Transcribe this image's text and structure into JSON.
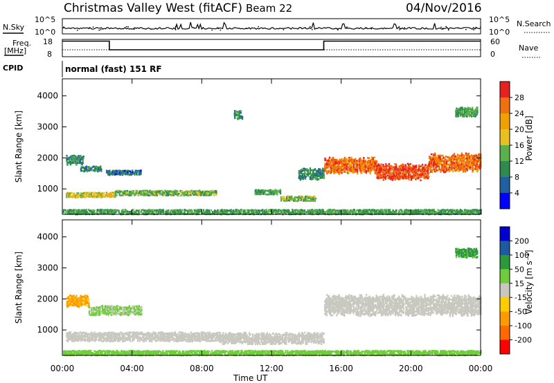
{
  "header": {
    "title": "Christmas Valley West (fitACF)",
    "beam": "Beam 22",
    "date": "04/Nov/2016"
  },
  "noise_panel": {
    "left_label": "N.Sky",
    "right_label": "N.Search",
    "left_ticks": [
      "10^5",
      "10^0"
    ],
    "right_ticks": [
      "10^5",
      "10^0"
    ]
  },
  "freq_panel": {
    "left_label_line1": "Freq.",
    "left_label_line2": "[MHz]",
    "right_label": "Nave",
    "left_ticks": [
      "18",
      "8"
    ],
    "right_ticks": [
      "60",
      "0"
    ]
  },
  "cpid": {
    "label": "CPID",
    "value": "normal (fast) 151 RF"
  },
  "power_panel": {
    "ylabel": "Slant Range [km]",
    "yticks": [
      "4000",
      "3000",
      "2000",
      "1000"
    ],
    "colorbar_label": "Power [dB]",
    "colorbar_ticks": [
      "28",
      "24",
      "20",
      "16",
      "12",
      "8",
      "4"
    ]
  },
  "velocity_panel": {
    "ylabel": "Slant Range [km]",
    "yticks": [
      "4000",
      "3000",
      "2000",
      "1000"
    ],
    "colorbar_label": "Velocity [m s⁻¹]",
    "colorbar_ticks": [
      "200",
      "100",
      "50",
      "15",
      "-15",
      "-50",
      "-100",
      "-200"
    ]
  },
  "xaxis": {
    "label": "Time UT",
    "ticks": [
      "00:00",
      "04:00",
      "08:00",
      "12:00",
      "16:00",
      "20:00",
      "00:00"
    ]
  },
  "colors": {
    "power_scale": [
      "#0000ff",
      "#2060a0",
      "#2f8a50",
      "#5ab04a",
      "#e8c020",
      "#f0a000",
      "#f07010",
      "#e82020"
    ],
    "velocity_scale": [
      "#ff0000",
      "#ff6a00",
      "#ff9a00",
      "#ffcc00",
      "#c8c8c0",
      "#6fcc3a",
      "#2a9a3a",
      "#1e5aa0",
      "#0000d0"
    ]
  },
  "chart_data": [
    {
      "type": "heatmap",
      "title": "Power",
      "xlabel": "Time UT",
      "ylabel": "Slant Range [km]",
      "xlim": [
        0,
        24
      ],
      "ylim": [
        180,
        4550
      ],
      "colorbar": "Power [dB]",
      "clim": [
        0,
        32
      ],
      "regions": [
        {
          "t_start": 0.2,
          "t_end": 1.2,
          "range_center": 1950,
          "range_halfwidth": 120,
          "value": 10
        },
        {
          "t_start": 1.0,
          "t_end": 2.2,
          "range_center": 1650,
          "range_halfwidth": 80,
          "value": 9
        },
        {
          "t_start": 2.5,
          "t_end": 4.5,
          "range_center": 1550,
          "range_halfwidth": 60,
          "value": 7
        },
        {
          "t_start": 0.2,
          "t_end": 3.0,
          "range_center": 820,
          "range_halfwidth": 70,
          "value": 18
        },
        {
          "t_start": 3.0,
          "t_end": 8.8,
          "range_center": 870,
          "range_halfwidth": 80,
          "value": 14
        },
        {
          "t_start": 11.0,
          "t_end": 12.5,
          "range_center": 920,
          "range_halfwidth": 60,
          "value": 12
        },
        {
          "t_start": 12.5,
          "t_end": 14.5,
          "range_center": 700,
          "range_halfwidth": 70,
          "value": 14
        },
        {
          "t_start": 13.5,
          "t_end": 15.0,
          "range_center": 1500,
          "range_halfwidth": 150,
          "value": 10
        },
        {
          "t_start": 15.0,
          "t_end": 18.0,
          "range_center": 1750,
          "range_halfwidth": 230,
          "value": 26
        },
        {
          "t_start": 18.0,
          "t_end": 21.0,
          "range_center": 1550,
          "range_halfwidth": 230,
          "value": 28
        },
        {
          "t_start": 21.0,
          "t_end": 24.0,
          "range_center": 1850,
          "range_halfwidth": 250,
          "value": 26
        },
        {
          "t_start": 0.0,
          "t_end": 24.0,
          "range_center": 280,
          "range_halfwidth": 60,
          "value": 12
        },
        {
          "t_start": 22.5,
          "t_end": 23.8,
          "range_center": 3500,
          "range_halfwidth": 120,
          "value": 12
        },
        {
          "t_start": 9.8,
          "t_end": 10.3,
          "range_center": 3400,
          "range_halfwidth": 120,
          "value": 10
        }
      ]
    },
    {
      "type": "heatmap",
      "title": "Velocity",
      "xlabel": "Time UT",
      "ylabel": "Slant Range [km]",
      "xlim": [
        0,
        24
      ],
      "ylim": [
        180,
        4550
      ],
      "colorbar": "Velocity [m s⁻¹]",
      "clim": [
        -250,
        250
      ],
      "regions": [
        {
          "t_start": 0.2,
          "t_end": 1.5,
          "range_center": 1950,
          "range_halfwidth": 150,
          "value": -60
        },
        {
          "t_start": 1.5,
          "t_end": 4.5,
          "range_center": 1650,
          "range_halfwidth": 120,
          "value": 20
        },
        {
          "t_start": 0.2,
          "t_end": 9.0,
          "range_center": 800,
          "range_halfwidth": 120,
          "value": 0
        },
        {
          "t_start": 9.0,
          "t_end": 15.0,
          "range_center": 750,
          "range_halfwidth": 150,
          "value": 0
        },
        {
          "t_start": 15.0,
          "t_end": 24.0,
          "range_center": 1800,
          "range_halfwidth": 280,
          "value": 0
        },
        {
          "t_start": 0.0,
          "t_end": 24.0,
          "range_center": 280,
          "range_halfwidth": 60,
          "value": 30
        },
        {
          "t_start": 22.5,
          "t_end": 23.8,
          "range_center": 3500,
          "range_halfwidth": 120,
          "value": 60
        }
      ]
    },
    {
      "type": "line",
      "title": "Frequency",
      "xlim": [
        0,
        24
      ],
      "ylim": [
        8,
        18
      ],
      "x": [
        0,
        2.7,
        2.7,
        15.0,
        15.0,
        24
      ],
      "y": [
        17,
        17,
        12,
        12,
        17,
        17
      ]
    },
    {
      "type": "line",
      "title": "Nave",
      "xlim": [
        0,
        24
      ],
      "ylim": [
        0,
        60
      ],
      "x": [
        0,
        24
      ],
      "y": [
        24,
        24
      ]
    }
  ]
}
